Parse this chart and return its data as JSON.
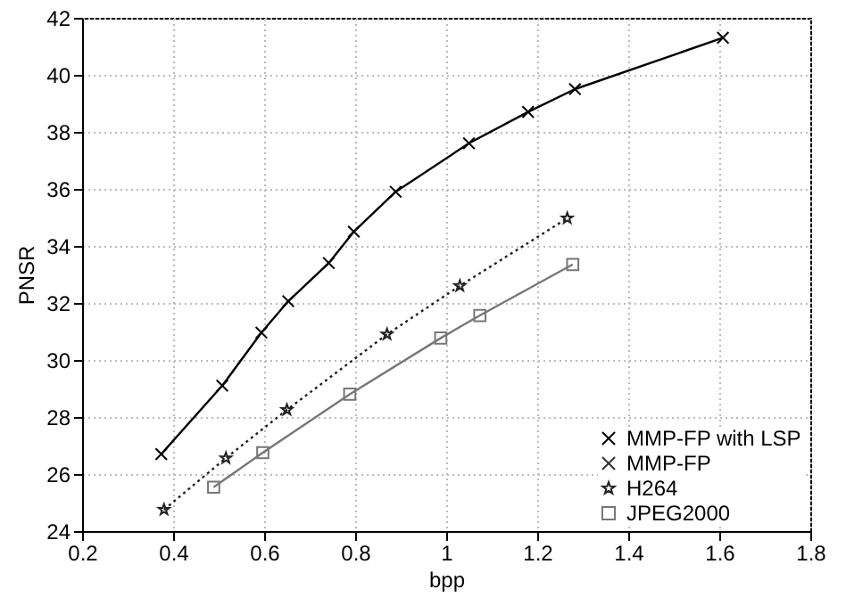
{
  "chart_data": {
    "type": "line",
    "xlabel": "bpp",
    "ylabel": "PNSR",
    "xlim": [
      0.2,
      1.8
    ],
    "xticks": [
      0.2,
      0.4,
      0.6,
      0.8,
      1,
      1.2,
      1.4,
      1.6,
      1.8
    ],
    "ylim": [
      24,
      42
    ],
    "yticks": [
      24,
      26,
      28,
      30,
      32,
      34,
      36,
      38,
      40,
      42
    ],
    "grid": true,
    "legend": "bottom right",
    "series": [
      {
        "name": "MMP-FP with LSP",
        "color": "#000000",
        "marker": "cross",
        "line_style": "solid",
        "x": [
          0.374,
          0.508,
          0.594,
          0.653,
          0.742,
          0.797,
          0.889,
          1.05,
          1.18,
          1.283,
          1.608
        ],
        "values": [
          26.7,
          29.1,
          30.96,
          32.06,
          33.4,
          34.5,
          35.9,
          37.6,
          38.7,
          39.5,
          41.3
        ]
      },
      {
        "name": "MMP-FP",
        "color": "#333333",
        "marker": "cross",
        "line_style": "dashed"
      },
      {
        "name": "H264",
        "color": "#222222",
        "marker": "star",
        "line_style": "dotted",
        "x": [
          0.38,
          0.516,
          0.65,
          0.87,
          1.03,
          1.266
        ],
        "values": [
          24.75,
          26.56,
          28.25,
          30.9,
          32.6,
          34.97
        ]
      },
      {
        "name": "JPEG2000",
        "color": "#777777",
        "marker": "square",
        "line_style": "solid",
        "x": [
          0.489,
          0.597,
          0.788,
          0.988,
          1.074,
          1.278
        ],
        "values": [
          25.54,
          26.75,
          28.8,
          30.77,
          31.56,
          33.35
        ]
      }
    ]
  }
}
